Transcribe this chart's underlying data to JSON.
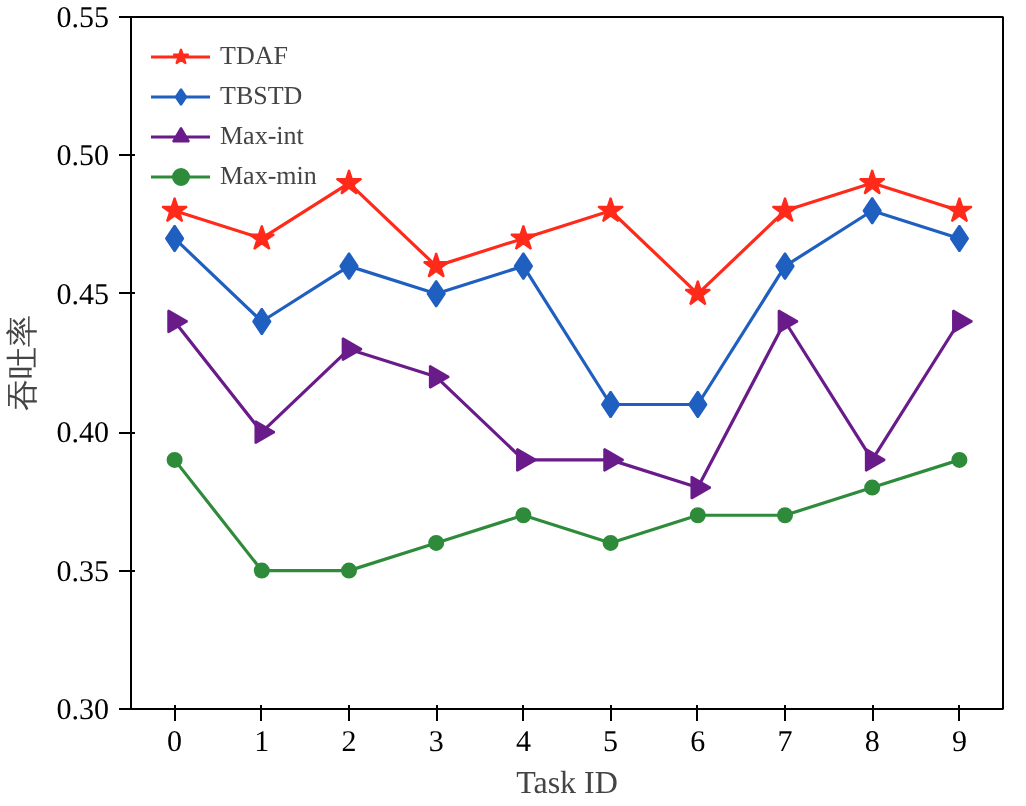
{
  "chart_data": {
    "type": "line",
    "xlabel": "Task ID",
    "ylabel": "吞吐率",
    "x": [
      0,
      1,
      2,
      3,
      4,
      5,
      6,
      7,
      8,
      9
    ],
    "xlim": [
      -0.5,
      9.5
    ],
    "xticks": [
      0,
      1,
      2,
      3,
      4,
      5,
      6,
      7,
      8,
      9
    ],
    "ylim": [
      0.3,
      0.55
    ],
    "yticks": [
      {
        "value": 0.3,
        "label": "0.30"
      },
      {
        "value": 0.35,
        "label": "0.35"
      },
      {
        "value": 0.4,
        "label": "0.40"
      },
      {
        "value": 0.45,
        "label": "0.45"
      },
      {
        "value": 0.5,
        "label": "0.50"
      },
      {
        "value": 0.55,
        "label": "0.55"
      }
    ],
    "grid": false,
    "legend": "top left",
    "line_style": "solid",
    "series": [
      {
        "name": "TDAF",
        "color": "#ff2a1a",
        "marker": "star",
        "values": [
          0.48,
          0.47,
          0.49,
          0.46,
          0.47,
          0.48,
          0.45,
          0.48,
          0.49,
          0.48
        ]
      },
      {
        "name": "TBSTD",
        "color": "#1f5fc0",
        "marker": "diamond",
        "values": [
          0.47,
          0.44,
          0.46,
          0.45,
          0.46,
          0.41,
          0.41,
          0.46,
          0.48,
          0.47
        ]
      },
      {
        "name": "Max-int",
        "color": "#6a1b8a",
        "marker": "triangle",
        "values": [
          0.44,
          0.4,
          0.43,
          0.42,
          0.39,
          0.39,
          0.38,
          0.44,
          0.39,
          0.44
        ]
      },
      {
        "name": "Max-min",
        "color": "#2e8b3a",
        "marker": "circle",
        "values": [
          0.39,
          0.35,
          0.35,
          0.36,
          0.37,
          0.36,
          0.37,
          0.37,
          0.38,
          0.39
        ]
      }
    ]
  }
}
